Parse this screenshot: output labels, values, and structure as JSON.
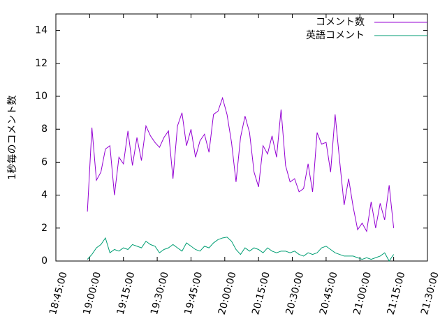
{
  "chart_data": {
    "type": "line",
    "ylabel": "1秒毎のコメント数",
    "x": [
      "18:59:00",
      "19:01:00",
      "19:03:00",
      "19:05:00",
      "19:07:00",
      "19:09:00",
      "19:11:00",
      "19:13:00",
      "19:15:00",
      "19:17:00",
      "19:19:00",
      "19:21:00",
      "19:23:00",
      "19:25:00",
      "19:27:00",
      "19:29:00",
      "19:31:00",
      "19:33:00",
      "19:35:00",
      "19:37:00",
      "19:39:00",
      "19:41:00",
      "19:43:00",
      "19:45:00",
      "19:47:00",
      "19:49:00",
      "19:51:00",
      "19:53:00",
      "19:55:00",
      "19:57:00",
      "19:59:00",
      "20:01:00",
      "20:03:00",
      "20:05:00",
      "20:07:00",
      "20:09:00",
      "20:11:00",
      "20:13:00",
      "20:15:00",
      "20:17:00",
      "20:19:00",
      "20:21:00",
      "20:23:00",
      "20:25:00",
      "20:27:00",
      "20:29:00",
      "20:31:00",
      "20:33:00",
      "20:35:00",
      "20:37:00",
      "20:39:00",
      "20:41:00",
      "20:43:00",
      "20:45:00",
      "20:47:00",
      "20:49:00",
      "20:51:00",
      "20:53:00",
      "20:55:00",
      "20:57:00",
      "20:59:00",
      "21:01:00",
      "21:03:00",
      "21:05:00",
      "21:07:00",
      "21:09:00",
      "21:11:00",
      "21:13:00",
      "21:15:00"
    ],
    "series": [
      {
        "name": "コメント数",
        "color": "#9400d3",
        "values": [
          3.0,
          8.1,
          4.9,
          5.4,
          6.8,
          7.0,
          4.0,
          6.3,
          5.9,
          7.9,
          5.8,
          7.5,
          6.1,
          8.2,
          7.6,
          7.2,
          6.9,
          7.5,
          7.9,
          5.0,
          8.2,
          9.0,
          7.0,
          8.0,
          6.3,
          7.3,
          7.7,
          6.6,
          8.9,
          9.1,
          9.9,
          8.9,
          7.2,
          4.8,
          7.5,
          8.8,
          7.8,
          5.4,
          4.5,
          7.0,
          6.5,
          7.6,
          6.3,
          9.2,
          5.8,
          4.8,
          5.0,
          4.2,
          4.4,
          5.9,
          4.2,
          7.8,
          7.1,
          7.2,
          5.4,
          8.9,
          6.1,
          3.4,
          5.0,
          3.3,
          1.9,
          2.3,
          1.8,
          3.6,
          2.0,
          3.5,
          2.5,
          4.6,
          2.0
        ]
      },
      {
        "name": "英語コメント",
        "color": "#009e73",
        "values": [
          0.1,
          0.4,
          0.8,
          1.0,
          1.4,
          0.5,
          0.7,
          0.6,
          0.8,
          0.7,
          1.0,
          0.9,
          0.8,
          1.2,
          1.0,
          0.9,
          0.5,
          0.7,
          0.8,
          1.0,
          0.8,
          0.6,
          1.1,
          0.9,
          0.7,
          0.6,
          0.9,
          0.8,
          1.1,
          1.3,
          1.4,
          1.45,
          1.2,
          0.7,
          0.4,
          0.8,
          0.6,
          0.8,
          0.7,
          0.5,
          0.8,
          0.6,
          0.5,
          0.6,
          0.6,
          0.5,
          0.6,
          0.4,
          0.3,
          0.5,
          0.4,
          0.5,
          0.8,
          0.9,
          0.7,
          0.5,
          0.4,
          0.3,
          0.3,
          0.3,
          0.2,
          0.1,
          0.2,
          0.1,
          0.2,
          0.3,
          0.5,
          0.0,
          0.4
        ]
      }
    ],
    "xlim": [
      "18:45:00",
      "21:30:00"
    ],
    "xticks": [
      "18:45:00",
      "19:00:00",
      "19:15:00",
      "19:30:00",
      "19:45:00",
      "20:00:00",
      "20:15:00",
      "20:30:00",
      "20:45:00",
      "21:00:00",
      "21:15:00",
      "21:30:00"
    ],
    "ylim": [
      0,
      15
    ],
    "yticks": [
      0,
      2,
      4,
      6,
      8,
      10,
      12,
      14
    ],
    "legend": "top-right"
  }
}
